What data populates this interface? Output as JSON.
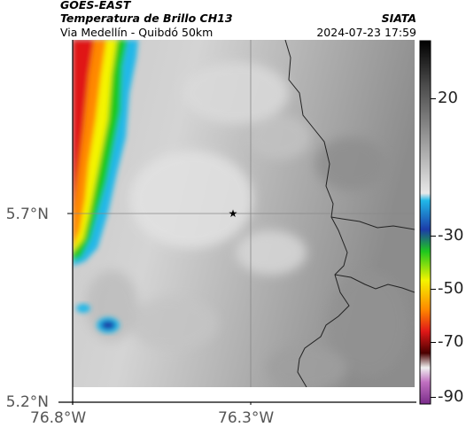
{
  "header": {
    "satellite": "GOES-EAST",
    "product": "Temperatura de Brillo CH13",
    "region": "Via Medellín - Quibdó 50km",
    "agency": "SIATA",
    "datetime": "2024-07-23 17:59"
  },
  "map": {
    "x_ticks": [
      "76.8°W",
      "76.3°W"
    ],
    "y_ticks": [
      "5.7°N",
      "5.2°N"
    ],
    "marker": "star-marker"
  },
  "colorbar": {
    "ticks": [
      "20",
      "-30",
      "-50",
      "-70",
      "-90"
    ]
  },
  "colors": {
    "cold_cloud_red": "#e01818",
    "cold_cloud_yellow": "#f4f400",
    "cold_cloud_green": "#1ec81e",
    "cold_cloud_cyan": "#20b8e8",
    "cold_cloud_blue": "#1c3ca8",
    "border": "#222222"
  }
}
